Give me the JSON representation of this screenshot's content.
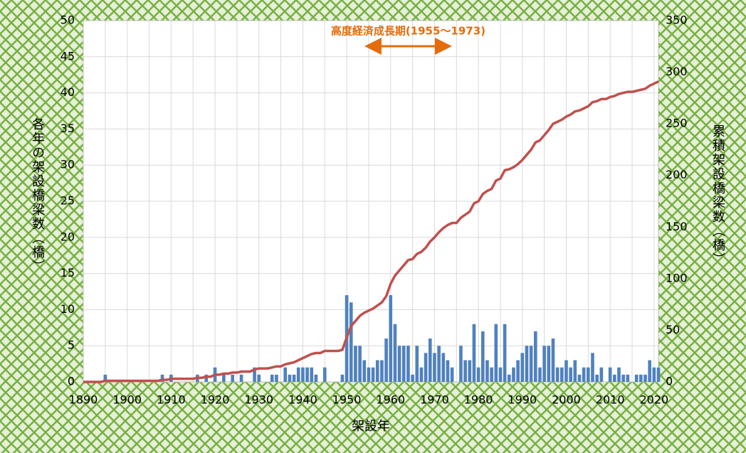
{
  "chart_data": {
    "type": "bar-line",
    "x_label": "架設年",
    "y_label": "各年の架設橋梁数（橋）",
    "y2_label": "累積架設橋梁数（橋）",
    "annotation": {
      "text": "高度経済成長期(1955～1973)",
      "span": [
        1955,
        1973
      ],
      "color": "#e46c0a"
    },
    "x": [
      1890,
      1891,
      1892,
      1893,
      1894,
      1895,
      1896,
      1897,
      1898,
      1899,
      1900,
      1901,
      1902,
      1903,
      1904,
      1905,
      1906,
      1907,
      1908,
      1909,
      1910,
      1911,
      1912,
      1913,
      1914,
      1915,
      1916,
      1917,
      1918,
      1919,
      1920,
      1921,
      1922,
      1923,
      1924,
      1925,
      1926,
      1927,
      1928,
      1929,
      1930,
      1931,
      1932,
      1933,
      1934,
      1935,
      1936,
      1937,
      1938,
      1939,
      1940,
      1941,
      1942,
      1943,
      1944,
      1945,
      1946,
      1947,
      1948,
      1949,
      1950,
      1951,
      1952,
      1953,
      1954,
      1955,
      1956,
      1957,
      1958,
      1959,
      1960,
      1961,
      1962,
      1963,
      1964,
      1965,
      1966,
      1967,
      1968,
      1969,
      1970,
      1971,
      1972,
      1973,
      1974,
      1975,
      1976,
      1977,
      1978,
      1979,
      1980,
      1981,
      1982,
      1983,
      1984,
      1985,
      1986,
      1987,
      1988,
      1989,
      1990,
      1991,
      1992,
      1993,
      1994,
      1995,
      1996,
      1997,
      1998,
      1999,
      2000,
      2001,
      2002,
      2003,
      2004,
      2005,
      2006,
      2007,
      2008,
      2009,
      2010,
      2011,
      2012,
      2013,
      2014,
      2015,
      2016,
      2017,
      2018,
      2019,
      2020,
      2021
    ],
    "series": [
      {
        "name": "各年",
        "type": "bar",
        "color": "#4f81bd",
        "values": [
          0,
          0,
          0,
          0,
          0,
          1,
          0,
          0,
          0,
          0,
          0,
          0,
          0,
          0,
          0,
          0,
          0,
          0,
          1,
          0,
          1,
          0,
          0,
          0,
          0,
          0,
          1,
          0,
          1,
          0,
          2,
          0,
          1,
          0,
          1,
          0,
          1,
          0,
          0,
          2,
          1,
          0,
          0,
          1,
          1,
          0,
          2,
          1,
          1,
          2,
          2,
          2,
          2,
          1,
          0,
          2,
          0,
          0,
          0,
          1,
          12,
          11,
          5,
          5,
          3,
          2,
          2,
          3,
          3,
          6,
          12,
          8,
          5,
          5,
          5,
          1,
          5,
          2,
          4,
          6,
          4,
          5,
          4,
          3,
          2,
          0,
          5,
          3,
          3,
          8,
          2,
          7,
          3,
          2,
          8,
          2,
          8,
          1,
          2,
          3,
          4,
          5,
          5,
          7,
          2,
          5,
          5,
          6,
          2,
          2,
          3,
          2,
          3,
          1,
          2,
          2,
          4,
          1,
          2,
          0,
          2,
          1,
          2,
          1,
          1,
          0,
          1,
          1,
          1,
          3,
          2,
          2
        ]
      },
      {
        "name": "累積",
        "type": "line",
        "axis": "y2",
        "color": "#c0504d",
        "values": [
          0,
          0,
          0,
          0,
          0,
          1,
          1,
          1,
          1,
          1,
          1,
          1,
          1,
          1,
          1,
          1,
          1,
          1,
          2,
          2,
          3,
          3,
          3,
          3,
          3,
          3,
          4,
          4,
          5,
          5,
          7,
          7,
          8,
          8,
          9,
          9,
          10,
          10,
          10,
          12,
          13,
          13,
          13,
          14,
          15,
          15,
          17,
          18,
          19,
          21,
          23,
          25,
          27,
          28,
          28,
          30,
          30,
          30,
          30,
          31,
          43,
          54,
          59,
          64,
          67,
          69,
          71,
          74,
          77,
          83,
          95,
          103,
          108,
          113,
          118,
          119,
          124,
          126,
          130,
          136,
          140,
          145,
          149,
          152,
          154,
          154,
          159,
          162,
          165,
          173,
          175,
          182,
          185,
          187,
          195,
          197,
          205,
          206,
          208,
          211,
          215,
          220,
          225,
          232,
          234,
          239,
          244,
          250,
          252,
          254,
          257,
          259,
          262,
          263,
          265,
          267,
          271,
          272,
          274,
          274,
          276,
          277,
          279,
          280,
          281,
          281,
          282,
          283,
          284,
          287,
          289,
          291
        ]
      }
    ],
    "xlim": [
      1890,
      2021
    ],
    "xticks": [
      1890,
      1900,
      1910,
      1920,
      1930,
      1940,
      1950,
      1960,
      1970,
      1980,
      1990,
      2000,
      2010,
      2020
    ],
    "xgrid": [
      1890,
      1895,
      1900,
      1905,
      1910,
      1915,
      1920,
      1925,
      1930,
      1935,
      1940,
      1945,
      1950,
      1955,
      1960,
      1965,
      1970,
      1975,
      1980,
      1985,
      1990,
      1995,
      2000,
      2005,
      2010,
      2015,
      2020
    ],
    "ylim": [
      0,
      50
    ],
    "yticks": [
      0,
      5,
      10,
      15,
      20,
      25,
      30,
      35,
      40,
      45,
      50
    ],
    "y2lim": [
      0,
      350
    ],
    "y2ticks": [
      0,
      50,
      100,
      150,
      200,
      250,
      300,
      350
    ],
    "grid": true
  }
}
